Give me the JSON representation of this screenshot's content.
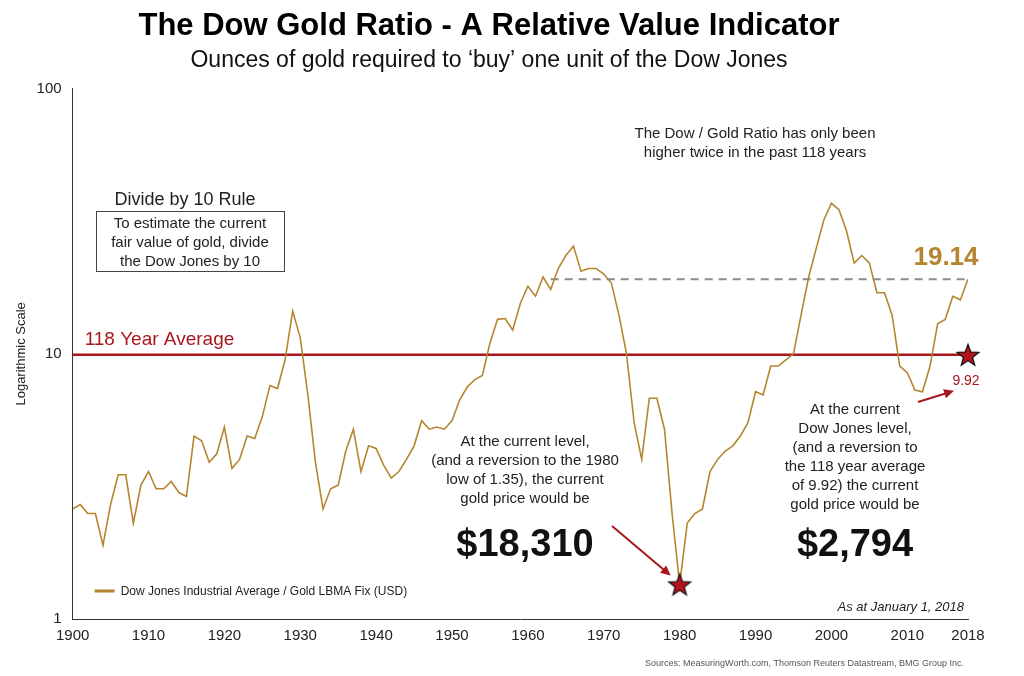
{
  "chart_data": {
    "type": "line",
    "title": "The Dow Gold Ratio - A Relative Value Indicator",
    "subtitle": "Ounces of gold required to ‘buy’ one unit of the Dow Jones",
    "y_label": "Logarithmic Scale",
    "log": "y",
    "grid": false,
    "legend": "lower left",
    "x": [
      1900,
      1901,
      1902,
      1903,
      1904,
      1905,
      1906,
      1907,
      1908,
      1909,
      1910,
      1911,
      1912,
      1913,
      1914,
      1915,
      1916,
      1917,
      1918,
      1919,
      1920,
      1921,
      1922,
      1923,
      1924,
      1925,
      1926,
      1927,
      1928,
      1929,
      1930,
      1931,
      1932,
      1933,
      1934,
      1935,
      1936,
      1937,
      1938,
      1939,
      1940,
      1941,
      1942,
      1943,
      1944,
      1945,
      1946,
      1947,
      1948,
      1949,
      1950,
      1951,
      1952,
      1953,
      1954,
      1955,
      1956,
      1957,
      1958,
      1959,
      1960,
      1961,
      1962,
      1963,
      1964,
      1965,
      1966,
      1967,
      1968,
      1969,
      1970,
      1971,
      1972,
      1973,
      1974,
      1975,
      1976,
      1977,
      1978,
      1979,
      1980,
      1981,
      1982,
      1983,
      1984,
      1985,
      1986,
      1987,
      1988,
      1989,
      1990,
      1991,
      1992,
      1993,
      1994,
      1995,
      1996,
      1997,
      1998,
      1999,
      2000,
      2001,
      2002,
      2003,
      2004,
      2005,
      2006,
      2007,
      2008,
      2009,
      2010,
      2011,
      2012,
      2013,
      2014,
      2015,
      2016,
      2017,
      2018
    ],
    "series": [
      {
        "name": "Dow Jones Industrial Average / Gold LBMA Fix (USD)",
        "color": "#b5852f",
        "values": [
          2.6,
          2.7,
          2.5,
          2.5,
          1.9,
          2.7,
          3.5,
          3.5,
          2.3,
          3.2,
          3.6,
          3.1,
          3.1,
          3.3,
          3.0,
          2.9,
          4.9,
          4.7,
          3.9,
          4.2,
          5.3,
          3.7,
          4.0,
          4.9,
          4.8,
          5.8,
          7.6,
          7.4,
          9.5,
          14.5,
          11.5,
          7.0,
          3.9,
          2.6,
          3.1,
          3.2,
          4.3,
          5.2,
          3.6,
          4.5,
          4.4,
          3.8,
          3.4,
          3.6,
          4.0,
          4.5,
          5.6,
          5.2,
          5.3,
          5.2,
          5.6,
          6.7,
          7.5,
          8.0,
          8.3,
          11.0,
          13.5,
          13.6,
          12.3,
          15.5,
          18.0,
          16.5,
          19.5,
          17.5,
          21.0,
          23.5,
          25.5,
          20.5,
          21.0,
          21.0,
          20.0,
          18.5,
          14.0,
          10.0,
          5.5,
          4.0,
          6.8,
          6.8,
          5.2,
          2.5,
          1.35,
          2.3,
          2.5,
          2.6,
          3.6,
          4.0,
          4.3,
          4.5,
          4.9,
          5.5,
          7.2,
          7.0,
          9.0,
          9.0,
          9.5,
          10.0,
          14.0,
          19.5,
          25.0,
          32.0,
          37.0,
          35.0,
          29.0,
          22.0,
          23.5,
          22.0,
          17.0,
          17.0,
          14.0,
          9.0,
          8.5,
          7.3,
          7.2,
          9.0,
          13.0,
          13.5,
          16.5,
          16.0,
          19.14
        ]
      }
    ],
    "xlim": [
      1900,
      2018
    ],
    "xticks": [
      1900,
      1910,
      1920,
      1930,
      1940,
      1950,
      1960,
      1970,
      1980,
      1990,
      2000,
      2010,
      2018
    ],
    "ylim": [
      1,
      100
    ],
    "yticks": [
      1,
      10,
      100
    ],
    "average": {
      "label": "118 Year Average",
      "value": 9.92
    },
    "current": {
      "value": 19.14,
      "from": 1963
    },
    "peak_note": [
      "The Dow / Gold Ratio has only been",
      "higher twice in the past 118 years"
    ],
    "rule": {
      "title": "Divide by 10 Rule",
      "text": [
        "To estimate the current",
        "fair value of gold, divide",
        "the Dow Jones by 10"
      ]
    },
    "scenarios": [
      {
        "x": 1980,
        "value": 1.35,
        "text": [
          "At the current level,",
          "(and a reversion to the 1980",
          "low of 1.35), the current",
          "gold price would be"
        ],
        "price": "$18,310"
      },
      {
        "x": 2018,
        "value": 9.92,
        "value_label": "9.92",
        "text": [
          "At the current",
          "Dow Jones level,",
          "(and a reversion to",
          "the 118 year average",
          "of 9.92) the current",
          "gold price would be"
        ],
        "price": "$2,794"
      }
    ],
    "as_at": "As at January 1, 2018",
    "sources": "Sources: MeasuringWorth.com, Thomson Reuters Datastream, BMG Group Inc."
  }
}
